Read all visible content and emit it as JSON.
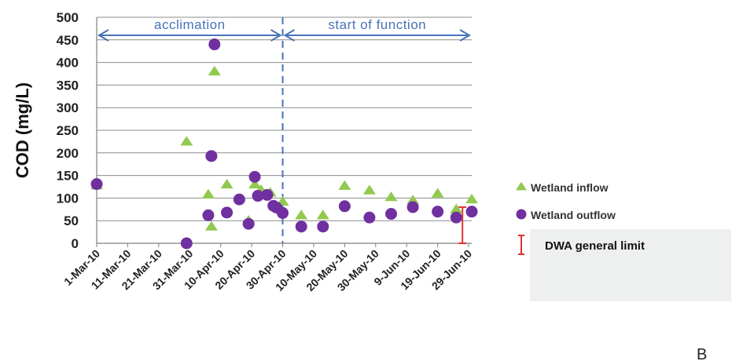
{
  "chart_data": {
    "type": "scatter",
    "ylabel": "COD (mg/L)",
    "ylim": [
      0,
      500
    ],
    "yticks": [
      "0",
      "50",
      "100",
      "150",
      "200",
      "250",
      "300",
      "350",
      "400",
      "450",
      "500"
    ],
    "x_tick_labels": [
      "1-Mar-10",
      "11-Mar-10",
      "21-Mar-10",
      "31-Mar-10",
      "10-Apr-10",
      "20-Apr-10",
      "30-Apr-10",
      "10-May-10",
      "20-May-10",
      "30-May-10",
      "9-Jun-10",
      "19-Jun-10",
      "29-Jun-10"
    ],
    "x_tick_dates": [
      "2010-03-01",
      "2010-03-11",
      "2010-03-21",
      "2010-03-31",
      "2010-04-10",
      "2010-04-20",
      "2010-04-30",
      "2010-05-10",
      "2010-05-20",
      "2010-05-30",
      "2010-06-09",
      "2010-06-19",
      "2010-06-29"
    ],
    "xlim": [
      "2010-03-01",
      "2010-06-30"
    ],
    "grid": "horizontal",
    "series": [
      {
        "name": "Wetland inflow",
        "marker": "triangle",
        "color": "#92c94f",
        "points": [
          {
            "x": "2010-03-01",
            "y": 128
          },
          {
            "x": "2010-03-30",
            "y": 225
          },
          {
            "x": "2010-04-06",
            "y": 108
          },
          {
            "x": "2010-04-07",
            "y": 37
          },
          {
            "x": "2010-04-08",
            "y": 380
          },
          {
            "x": "2010-04-12",
            "y": 130
          },
          {
            "x": "2010-04-19",
            "y": 50
          },
          {
            "x": "2010-04-21",
            "y": 130
          },
          {
            "x": "2010-04-23",
            "y": 118
          },
          {
            "x": "2010-04-26",
            "y": 112
          },
          {
            "x": "2010-04-30",
            "y": 92
          },
          {
            "x": "2010-05-06",
            "y": 62
          },
          {
            "x": "2010-05-13",
            "y": 62
          },
          {
            "x": "2010-05-20",
            "y": 127
          },
          {
            "x": "2010-05-28",
            "y": 117
          },
          {
            "x": "2010-06-04",
            "y": 102
          },
          {
            "x": "2010-06-11",
            "y": 95
          },
          {
            "x": "2010-06-19",
            "y": 110
          },
          {
            "x": "2010-06-25",
            "y": 75
          },
          {
            "x": "2010-06-30",
            "y": 97
          }
        ]
      },
      {
        "name": "Wetland outflow",
        "marker": "circle",
        "color": "#7030a0",
        "points": [
          {
            "x": "2010-03-01",
            "y": 131
          },
          {
            "x": "2010-03-30",
            "y": 0
          },
          {
            "x": "2010-04-06",
            "y": 62
          },
          {
            "x": "2010-04-07",
            "y": 193
          },
          {
            "x": "2010-04-08",
            "y": 440
          },
          {
            "x": "2010-04-12",
            "y": 68
          },
          {
            "x": "2010-04-16",
            "y": 97
          },
          {
            "x": "2010-04-19",
            "y": 43
          },
          {
            "x": "2010-04-21",
            "y": 147
          },
          {
            "x": "2010-04-22",
            "y": 105
          },
          {
            "x": "2010-04-25",
            "y": 107
          },
          {
            "x": "2010-04-27",
            "y": 83
          },
          {
            "x": "2010-04-28",
            "y": 79
          },
          {
            "x": "2010-04-30",
            "y": 67
          },
          {
            "x": "2010-05-06",
            "y": 37
          },
          {
            "x": "2010-05-13",
            "y": 37
          },
          {
            "x": "2010-05-20",
            "y": 82
          },
          {
            "x": "2010-05-28",
            "y": 57
          },
          {
            "x": "2010-06-04",
            "y": 65
          },
          {
            "x": "2010-06-11",
            "y": 80
          },
          {
            "x": "2010-06-19",
            "y": 70
          },
          {
            "x": "2010-06-25",
            "y": 57
          },
          {
            "x": "2010-06-30",
            "y": 70
          }
        ]
      }
    ],
    "phases": [
      {
        "label": "acclimation",
        "from": "2010-03-01",
        "to": "2010-04-30"
      },
      {
        "label": "start of function",
        "from": "2010-04-30",
        "to": "2010-06-30"
      }
    ],
    "divider_date": "2010-04-30",
    "limit_bar": {
      "label": "DWA general limit",
      "x": "2010-06-27",
      "y_low": 0,
      "y_high": 80,
      "color": "#e03030"
    },
    "legend": {
      "position": "right",
      "entries": [
        "Wetland inflow",
        "Wetland outflow",
        "DWA general limit"
      ]
    },
    "panel_label": "B"
  }
}
